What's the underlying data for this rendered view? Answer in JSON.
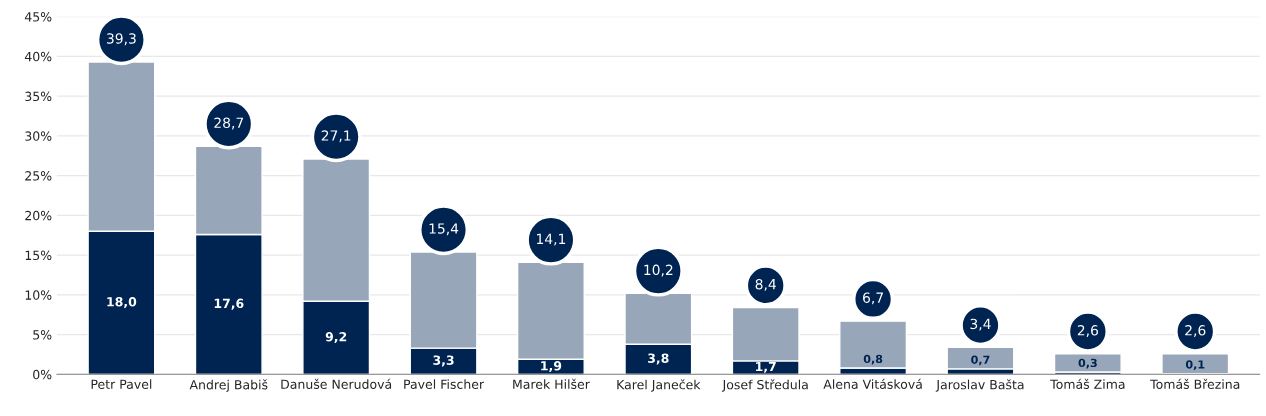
{
  "chart_data": {
    "type": "bar",
    "stacked": true,
    "categories": [
      "Petr Pavel",
      "Andrej Babiš",
      "Danuše Nerudová",
      "Pavel Fischer",
      "Marek Hilšer",
      "Karel Janeček",
      "Josef Středula",
      "Alena Vitásková",
      "Jaroslav Bašta",
      "Tomáš Zima",
      "Tomáš Březina"
    ],
    "series": [
      {
        "color": "#002452",
        "values": [
          18.0,
          17.6,
          9.2,
          3.3,
          1.9,
          3.8,
          1.7,
          0.8,
          0.7,
          0.3,
          0.1
        ],
        "value_labels": [
          "18,0",
          "17,6",
          "9,2",
          "3,3",
          "1,9",
          "3,8",
          "1,7",
          "0,8",
          "0,7",
          "0,3",
          "0,1"
        ]
      },
      {
        "color": "#97a6b9",
        "values": [
          21.3,
          11.1,
          17.9,
          12.1,
          12.2,
          6.4,
          6.7,
          5.9,
          2.7,
          2.3,
          2.5
        ]
      }
    ],
    "totals": [
      "39,3",
      "28,7",
      "27,1",
      "15,4",
      "14,1",
      "10,2",
      "8,4",
      "6,7",
      "3,4",
      "2,6",
      "2,6"
    ],
    "ylim": [
      0,
      45
    ],
    "yticks": [
      {
        "value": 0,
        "label": "0%"
      },
      {
        "value": 5,
        "label": "5%"
      },
      {
        "value": 10,
        "label": "10%"
      },
      {
        "value": 15,
        "label": "15%"
      },
      {
        "value": 20,
        "label": "20%"
      },
      {
        "value": 25,
        "label": "25%"
      },
      {
        "value": 30,
        "label": "30%"
      },
      {
        "value": 35,
        "label": "35%"
      },
      {
        "value": 40,
        "label": "40%"
      },
      {
        "value": 45,
        "label": "45%"
      }
    ],
    "grid": "y",
    "legend": false
  }
}
